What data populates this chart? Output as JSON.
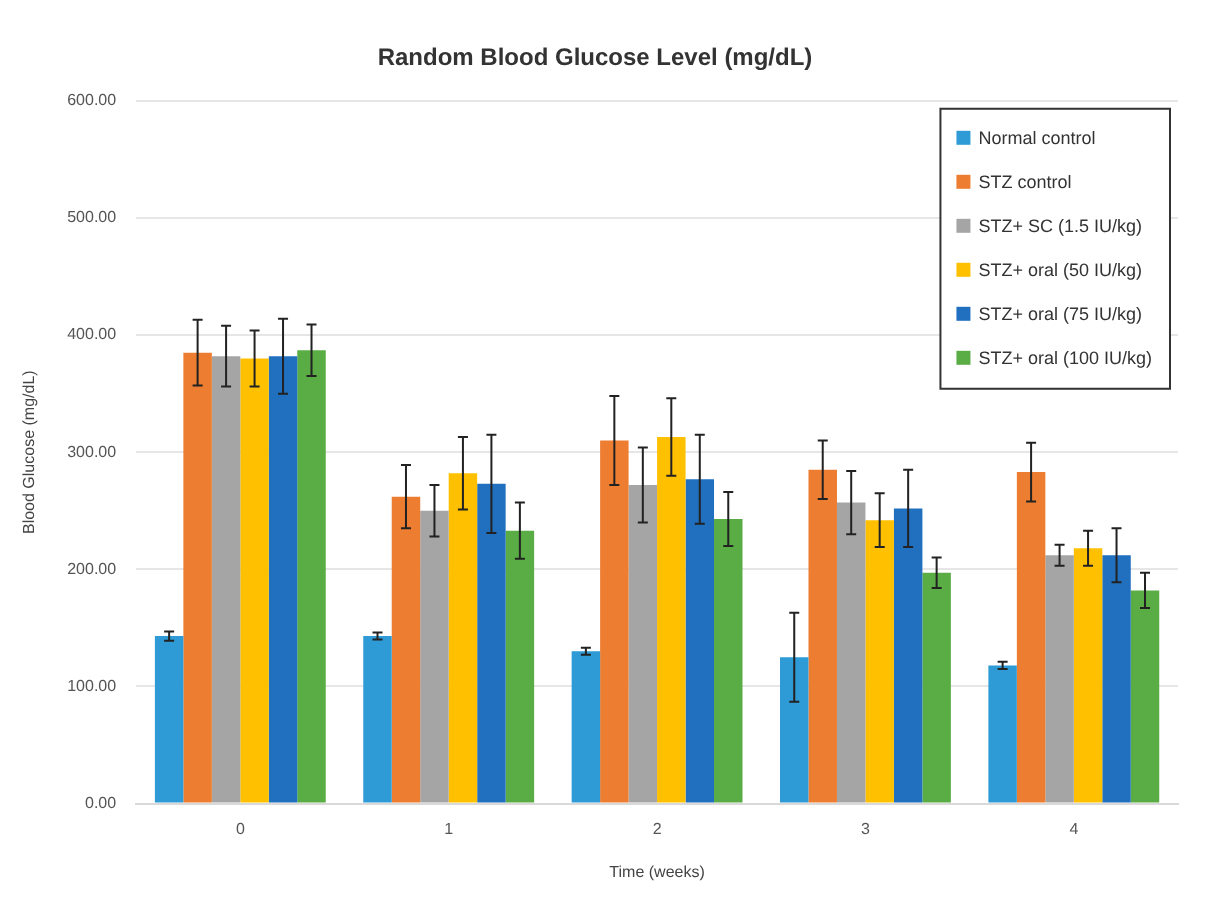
{
  "chart_data": {
    "type": "bar",
    "title": "Random Blood Glucose Level (mg/dL)",
    "xlabel": "Time (weeks)",
    "ylabel": "Blood Glucose (mg/dL)",
    "categories": [
      "0",
      "1",
      "2",
      "3",
      "4"
    ],
    "series": [
      {
        "name": "Normal control",
        "color": "#2e9bd6",
        "values": [
          143,
          143,
          130,
          125,
          118
        ],
        "errors": [
          4,
          3,
          3,
          38,
          3
        ]
      },
      {
        "name": "STZ control",
        "color": "#ed7d31",
        "values": [
          385,
          262,
          310,
          285,
          283
        ],
        "errors": [
          28,
          27,
          38,
          25,
          25
        ]
      },
      {
        "name": "STZ+ SC (1.5 IU/kg)",
        "color": "#a5a5a5",
        "values": [
          382,
          250,
          272,
          257,
          212
        ],
        "errors": [
          26,
          22,
          32,
          27,
          9
        ]
      },
      {
        "name": "STZ+ oral (50 IU/kg)",
        "color": "#ffc000",
        "values": [
          380,
          282,
          313,
          242,
          218
        ],
        "errors": [
          24,
          31,
          33,
          23,
          15
        ]
      },
      {
        "name": "STZ+ oral (75 IU/kg)",
        "color": "#2170c0",
        "values": [
          382,
          273,
          277,
          252,
          212
        ],
        "errors": [
          32,
          42,
          38,
          33,
          23
        ]
      },
      {
        "name": "STZ+ oral (100 IU/kg)",
        "color": "#5aac44",
        "values": [
          387,
          233,
          243,
          197,
          182
        ],
        "errors": [
          22,
          24,
          23,
          13,
          15
        ]
      }
    ],
    "ylim": [
      0,
      600
    ],
    "yticks": [
      {
        "value": 0,
        "label": "0.00"
      },
      {
        "value": 100,
        "label": "100.00"
      },
      {
        "value": 200,
        "label": "200.00"
      },
      {
        "value": 300,
        "label": "300.00"
      },
      {
        "value": 400,
        "label": "400.00"
      },
      {
        "value": 500,
        "label": "500.00"
      },
      {
        "value": 600,
        "label": "600.00"
      }
    ],
    "grid": "y",
    "legend": "top right"
  }
}
